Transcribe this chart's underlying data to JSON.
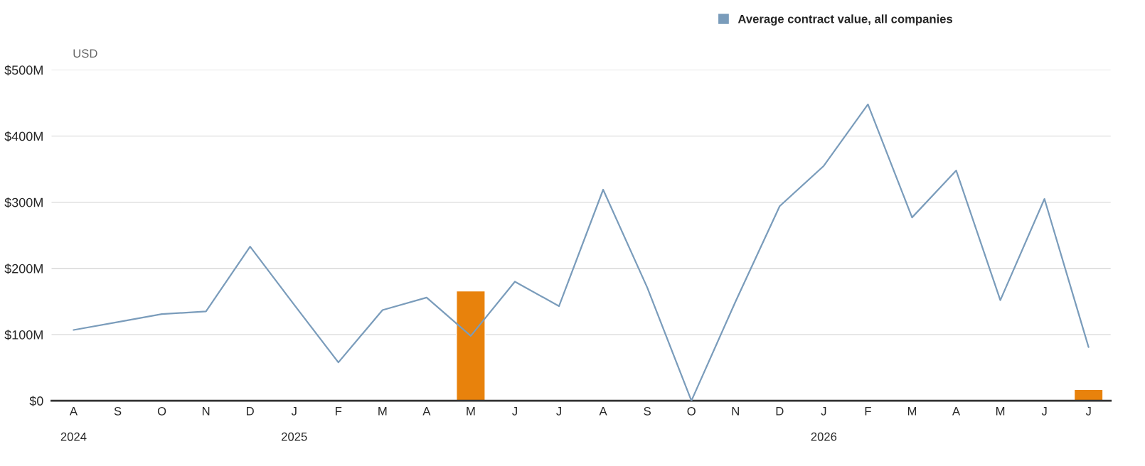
{
  "chart_data": {
    "type": "line",
    "ylabel": "USD",
    "categories": [
      "A\n\n2024",
      "S",
      "O",
      "N",
      "D",
      "J\n\n2025",
      "F",
      "M",
      "A",
      "M",
      "J",
      "J",
      "A",
      "S",
      "O",
      "N",
      "D",
      "J\n\n2026",
      "F",
      "M",
      "A",
      "M",
      "J",
      "J"
    ],
    "series": [
      {
        "type": "bar",
        "color": "#e8820c",
        "values": [
          null,
          null,
          null,
          null,
          null,
          null,
          null,
          null,
          null,
          166,
          null,
          null,
          null,
          null,
          null,
          null,
          null,
          null,
          null,
          null,
          null,
          null,
          null,
          17
        ]
      },
      {
        "name": "Average contract value, all companies",
        "color": "#7a9cbb",
        "values": [
          107,
          119,
          131,
          135,
          233,
          145,
          58,
          137,
          156,
          98,
          180,
          143,
          319,
          171,
          0,
          150,
          294,
          355,
          448,
          277,
          348,
          152,
          305,
          81
        ]
      }
    ],
    "ylim": [
      0,
      500
    ],
    "yticks": [
      {
        "value": 0,
        "label": "$0"
      },
      {
        "value": 100,
        "label": "$100M"
      },
      {
        "value": 200,
        "label": "$200M"
      },
      {
        "value": 300,
        "label": "$300M"
      },
      {
        "value": 400,
        "label": "$400M"
      },
      {
        "value": 500,
        "label": "$500M"
      }
    ],
    "grid": "y",
    "legend": "top right"
  }
}
